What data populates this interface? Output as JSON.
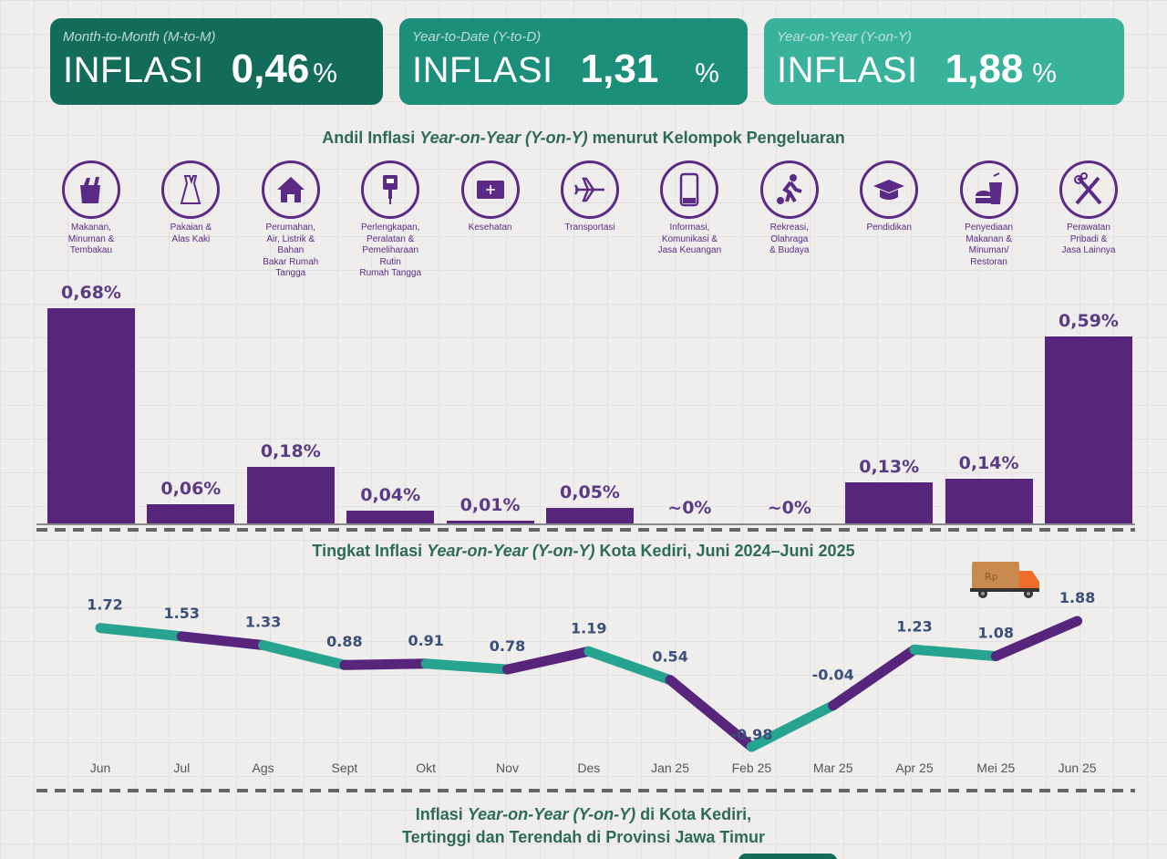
{
  "cards": {
    "mtm": {
      "subtitle": "Month-to-Month (M-to-M)",
      "label": "INFLASI",
      "value": "0,46",
      "unit": "%",
      "color": "#136b5a"
    },
    "ytd": {
      "subtitle": "Year-to-Date (Y-to-D)",
      "label": "INFLASI",
      "value": "1,31",
      "unit": "%",
      "color": "#1b8f7a"
    },
    "yoy": {
      "subtitle": "Year-on-Year (Y-on-Y)",
      "label": "INFLASI",
      "value": "1,88",
      "unit": "%",
      "color": "#38b29a"
    }
  },
  "titles": {
    "andil_pre": "Andil Inflasi ",
    "andil_it": "Year-on-Year (Y-on-Y)",
    "andil_post": " menurut Kelompok Pengeluaran",
    "tingkat_pre": "Tingkat Inflasi ",
    "tingkat_it": "Year-on-Year (Y-on-Y)",
    "tingkat_post": " Kota Kediri, Juni 2024–Juni 2025",
    "bottom_l1_pre": "Inflasi ",
    "bottom_l1_it": "Year-on-Year (Y-on-Y)",
    "bottom_l1_post": " di Kota Kediri,",
    "bottom_l2": "Tertinggi dan Terendah di Provinsi Jawa Timur"
  },
  "colors": {
    "bar": "#57257c",
    "line_teal": "#26a48f",
    "line_purple": "#57257c",
    "title_green": "#2d6b58"
  },
  "chart_data": [
    {
      "type": "bar",
      "title": "Andil Inflasi Year-on-Year (Y-on-Y) menurut Kelompok Pengeluaran",
      "categories": [
        "Makanan, Minuman & Tembakau",
        "Pakaian & Alas Kaki",
        "Perumahan, Air, Listrik & Bahan Bakar Rumah Tangga",
        "Perlengkapan, Peralatan & Pemeliharaan Rutin Rumah Tangga",
        "Kesehatan",
        "Transportasi",
        "Informasi, Komunikasi & Jasa Keuangan",
        "Rekreasi, Olahraga & Budaya",
        "Pendidikan",
        "Penyediaan Makanan & Minuman/ Restoran",
        "Perawatan Pribadi & Jasa Lainnya"
      ],
      "category_lines": [
        "Makanan,\nMinuman &\nTembakau",
        "Pakaian &\nAlas Kaki",
        "Perumahan,\nAir, Listrik &\nBahan\nBakar Rumah\nTangga",
        "Perlengkapan,\nPeralatan &\nPemeliharaan\nRutin\nRumah Tangga",
        "Kesehatan",
        "Transportasi",
        "Informasi,\nKomunikasi &\nJasa Keuangan",
        "Rekreasi,\nOlahraga\n& Budaya",
        "Pendidikan",
        "Penyediaan\nMakanan &\nMinuman/\nRestoran",
        "Perawatan\nPribadi &\nJasa Lainnya"
      ],
      "icons": [
        "grocery-bag-icon",
        "dress-icon",
        "house-icon",
        "appliance-plug-icon",
        "medical-kit-icon",
        "airplane-icon",
        "smartphone-icon",
        "soccer-player-icon",
        "graduation-cap-icon",
        "fast-food-icon",
        "scissors-comb-icon"
      ],
      "values": [
        0.68,
        0.06,
        0.18,
        0.04,
        0.01,
        0.05,
        0,
        0,
        0.13,
        0.14,
        0.59
      ],
      "labels": [
        "0,68%",
        "0,06%",
        "0,18%",
        "0,04%",
        "0,01%",
        "0,05%",
        "~0%",
        "~0%",
        "0,13%",
        "0,14%",
        "0,59%"
      ],
      "ylim": [
        0,
        0.68
      ],
      "unit": "%"
    },
    {
      "type": "line",
      "title": "Tingkat Inflasi Year-on-Year (Y-on-Y) Kota Kediri, Juni 2024–Juni 2025",
      "categories": [
        "Jun",
        "Jul",
        "Ags",
        "Sept",
        "Okt",
        "Nov",
        "Des",
        "Jan 25",
        "Feb 25",
        "Mar 25",
        "Apr 25",
        "Mei 25",
        "Jun 25"
      ],
      "values": [
        1.72,
        1.53,
        1.33,
        0.88,
        0.91,
        0.78,
        1.19,
        0.54,
        -0.98,
        -0.04,
        1.23,
        1.08,
        1.88
      ],
      "labels": [
        "1.72",
        "1.53",
        "1.33",
        "0.88",
        "0.91",
        "0.78",
        "1.19",
        "0.54",
        "-0.98",
        "-0.04",
        "1.23",
        "1.08",
        "1.88"
      ],
      "ylim": [
        -1.0,
        1.9
      ],
      "grid": true,
      "annotation": "delivery-truck-icon with Rp"
    }
  ]
}
